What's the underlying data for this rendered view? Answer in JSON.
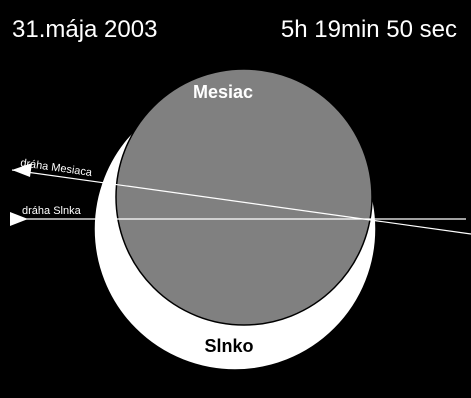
{
  "header": {
    "date": "31.mája 2003",
    "time": "5h 19min 50 sec"
  },
  "bodies": {
    "moon_label": "Mesiac",
    "sun_label": "Slnko"
  },
  "paths": {
    "moon_path_label": "dráha Mesiaca",
    "sun_path_label": "dráha Slnka"
  },
  "colors": {
    "background": "#000000",
    "moon_fill": "#808080",
    "sun_fill": "#ffffff",
    "text": "#ffffff",
    "outline": "#000000"
  }
}
